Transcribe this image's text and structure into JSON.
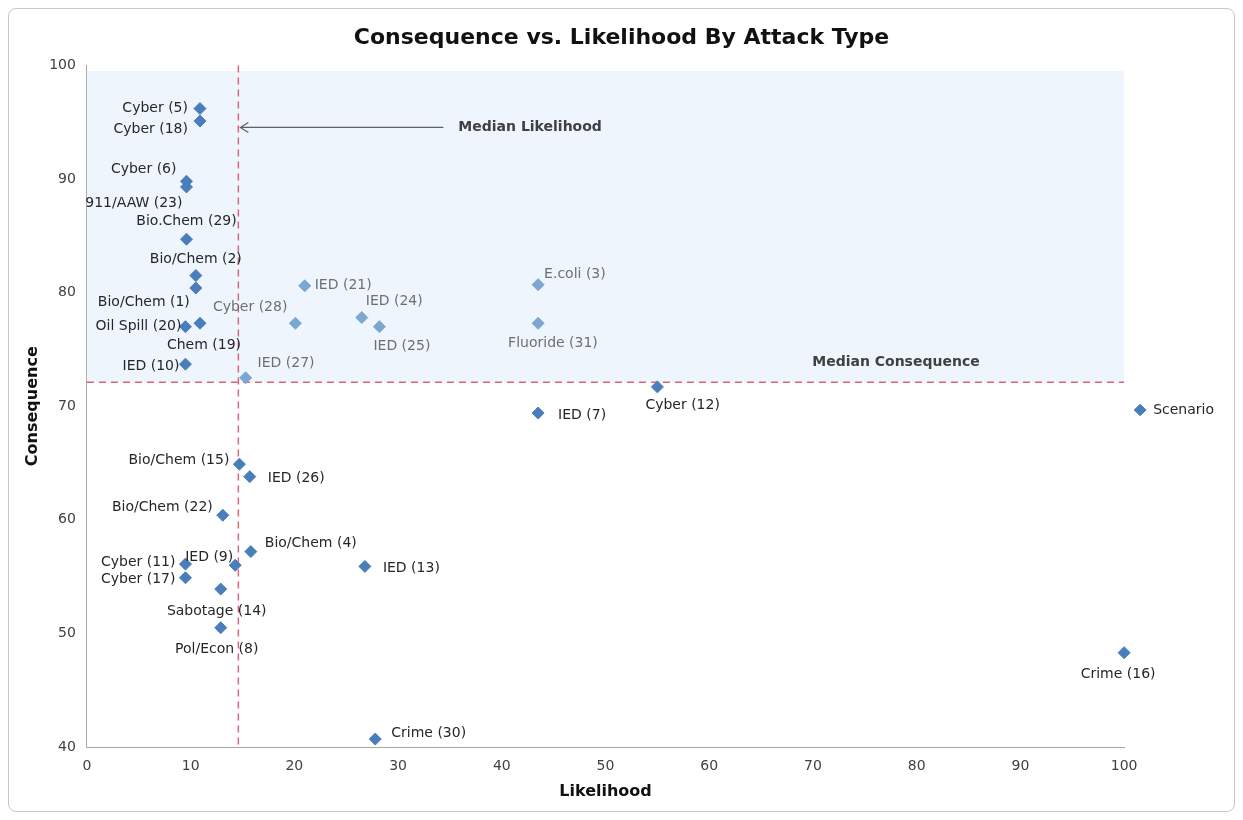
{
  "chart_data": {
    "type": "scatter",
    "title": "Consequence vs. Likelihood By Attack Type",
    "xlabel": "Likelihood",
    "ylabel": "Consequence",
    "xlim": [
      0,
      100
    ],
    "xticks": [
      0,
      10,
      20,
      30,
      40,
      50,
      60,
      70,
      80,
      90,
      100
    ],
    "ylim": [
      40,
      100
    ],
    "yticks": [
      40,
      50,
      60,
      70,
      80,
      90,
      100
    ],
    "grid": false,
    "legend": "right",
    "marker": "diamond",
    "series": [
      {
        "name": "Scenario",
        "color": "#4a7ebb",
        "x": [
          10.9,
          10.9,
          9.6,
          9.6,
          9.6,
          10.5,
          10.5,
          9.5,
          10.9,
          9.5,
          15.3,
          21.0,
          20.1,
          26.5,
          28.2,
          43.5,
          43.5,
          55.0,
          43.5,
          14.7,
          15.7,
          13.1,
          15.8,
          14.3,
          9.5,
          9.5,
          12.9,
          12.9,
          26.8,
          27.8,
          100
        ],
        "values": [
          96.2,
          95.1,
          89.8,
          89.3,
          84.7,
          81.5,
          80.4,
          77.0,
          77.3,
          73.7,
          72.5,
          80.6,
          77.3,
          77.8,
          77.0,
          80.7,
          77.3,
          71.7,
          69.4,
          64.9,
          63.8,
          60.4,
          57.2,
          56.0,
          56.1,
          54.9,
          53.9,
          50.5,
          55.9,
          40.7,
          48.3
        ],
        "colors": [
          "#4a7ebb",
          "#4a7ebb",
          "#4a7ebb",
          "#4a7ebb",
          "#4a7ebb",
          "#4a7ebb",
          "#4a7ebb",
          "#4a7ebb",
          "#4a7ebb",
          "#4a7ebb",
          "#7ba7d0",
          "#7ba7d0",
          "#7ba7d0",
          "#7ba7d0",
          "#7ba7d0",
          "#7ba7d0",
          "#7ba7d0",
          "#4a7ebb",
          "#4a7ebb",
          "#4a7ebb",
          "#4a7ebb",
          "#4a7ebb",
          "#4a7ebb",
          "#4a7ebb",
          "#4a7ebb",
          "#4a7ebb",
          "#4a7ebb",
          "#4a7ebb",
          "#4a7ebb",
          "#4a7ebb",
          "#4a7ebb"
        ]
      }
    ],
    "annotations": [
      {
        "text": "Cyber (5)",
        "x": 10.9,
        "y": 96.2
      },
      {
        "text": "Cyber (18)",
        "x": 10.9,
        "y": 95.1
      },
      {
        "text": "Cyber (6)",
        "x": 9.6,
        "y": 89.8
      },
      {
        "text": "911/AAW (23)",
        "x": 9.6,
        "y": 89.3
      },
      {
        "text": "Bio.Chem (29)",
        "x": 9.6,
        "y": 84.7
      },
      {
        "text": "Bio/Chem (2)",
        "x": 10.5,
        "y": 81.5
      },
      {
        "text": "Bio/Chem (1)",
        "x": 10.5,
        "y": 80.4
      },
      {
        "text": "Oil Spill (20)",
        "x": 9.5,
        "y": 77.0
      },
      {
        "text": "Chem (19)",
        "x": 10.9,
        "y": 77.3
      },
      {
        "text": "IED (10)",
        "x": 9.5,
        "y": 73.7
      },
      {
        "text": "IED (27)",
        "x": 15.3,
        "y": 72.5
      },
      {
        "text": "IED (21)",
        "x": 21.0,
        "y": 80.6
      },
      {
        "text": "Cyber (28)",
        "x": 20.1,
        "y": 77.3
      },
      {
        "text": "IED (24)",
        "x": 26.5,
        "y": 77.8
      },
      {
        "text": "IED (25)",
        "x": 28.2,
        "y": 77.0
      },
      {
        "text": "E.coli (3)",
        "x": 43.5,
        "y": 80.7
      },
      {
        "text": "Fluoride (31)",
        "x": 43.5,
        "y": 77.3
      },
      {
        "text": "Cyber (12)",
        "x": 55.0,
        "y": 71.7
      },
      {
        "text": "IED (7)",
        "x": 43.5,
        "y": 69.4
      },
      {
        "text": "Bio/Chem (15)",
        "x": 14.7,
        "y": 64.9
      },
      {
        "text": "IED (26)",
        "x": 15.7,
        "y": 63.8
      },
      {
        "text": "Bio/Chem (22)",
        "x": 13.1,
        "y": 60.4
      },
      {
        "text": "Bio/Chem (4)",
        "x": 15.8,
        "y": 57.2
      },
      {
        "text": "IED (9)",
        "x": 14.3,
        "y": 56.0
      },
      {
        "text": "Cyber (11)",
        "x": 9.5,
        "y": 56.1
      },
      {
        "text": "Cyber (17)",
        "x": 9.5,
        "y": 54.9
      },
      {
        "text": "Sabotage (14)",
        "x": 12.9,
        "y": 53.9
      },
      {
        "text": "Pol/Econ (8)",
        "x": 12.9,
        "y": 50.5
      },
      {
        "text": "IED (13)",
        "x": 26.8,
        "y": 55.9
      },
      {
        "text": "Crime (30)",
        "x": 27.8,
        "y": 40.7
      },
      {
        "text": "Crime (16)",
        "x": 100,
        "y": 48.3
      }
    ],
    "ref_lines": [
      {
        "axis": "x",
        "value": 14.6,
        "label": "Median Likelihood",
        "color": "#d9667a",
        "line_style": "dashed"
      },
      {
        "axis": "y",
        "value": 72.1,
        "label": "Median Consequence",
        "color": "#d9667a",
        "line_style": "dashed"
      }
    ],
    "bands": [
      {
        "axis": "y",
        "from": 72.1,
        "to": 99.5,
        "color": "#eef5fd"
      }
    ]
  }
}
